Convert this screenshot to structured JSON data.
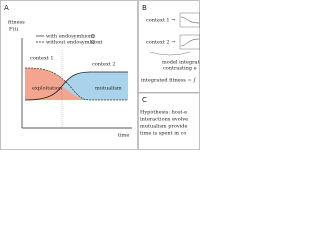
{
  "panels": {
    "a": {
      "label": "A",
      "y_label": [
        "fitness",
        "F(t)"
      ],
      "x_label": "time",
      "legend": [
        "with endosymbiont",
        "without endosymbiont"
      ],
      "contexts": [
        "context 1",
        "context 2"
      ],
      "regions": [
        "exploitation",
        "mutualism"
      ]
    },
    "b": {
      "label": "B",
      "rows": [
        "context 1 →",
        "context 2 →"
      ],
      "caption": [
        "model integrat",
        "contrasting e"
      ],
      "formula": "integrated fitness = ∫"
    },
    "c": {
      "label": "C",
      "lines": [
        "Hypothesis: host-e",
        "interactions evolve",
        "mutualism provide",
        "time is spent in co"
      ]
    }
  }
}
